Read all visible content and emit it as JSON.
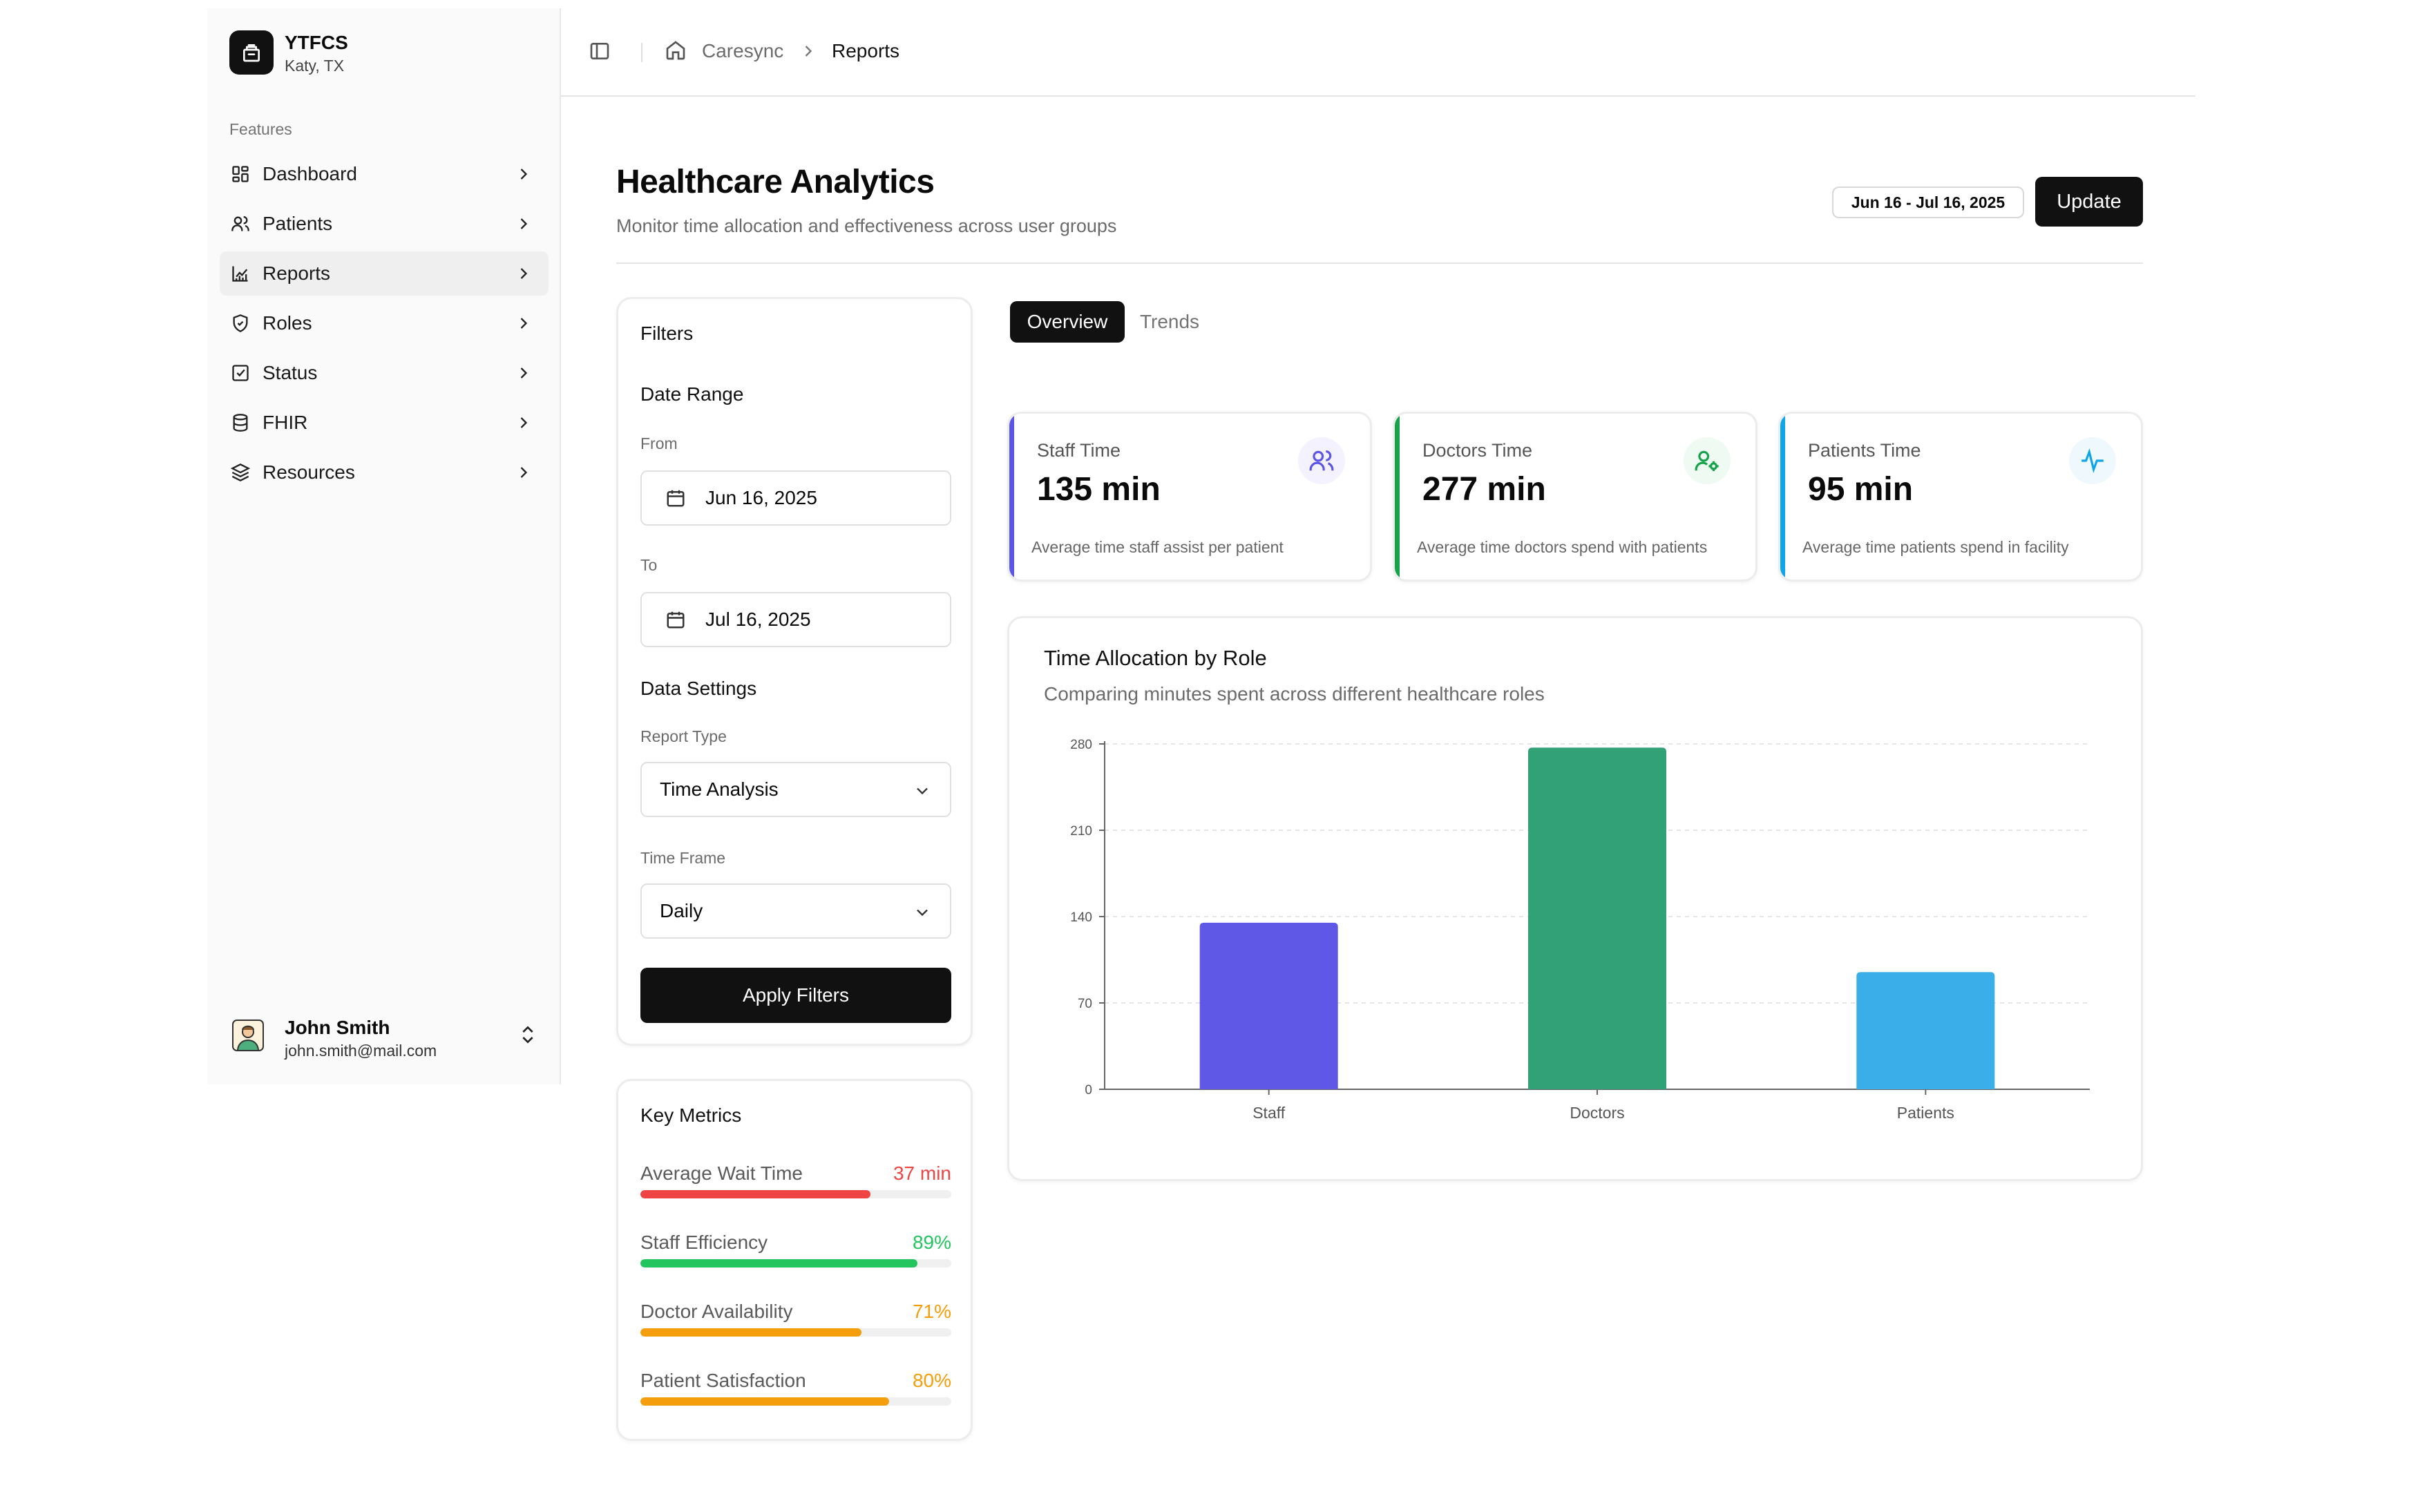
{
  "brand": {
    "name": "YTFCS",
    "location": "Katy, TX"
  },
  "sidebar": {
    "section_label": "Features",
    "items": [
      {
        "label": "Dashboard",
        "icon": "dashboard-icon"
      },
      {
        "label": "Patients",
        "icon": "users-icon"
      },
      {
        "label": "Reports",
        "icon": "chart-icon",
        "active": true
      },
      {
        "label": "Roles",
        "icon": "shield-icon"
      },
      {
        "label": "Status",
        "icon": "checkbox-icon"
      },
      {
        "label": "FHIR",
        "icon": "database-icon"
      },
      {
        "label": "Resources",
        "icon": "layers-icon"
      }
    ],
    "user": {
      "name": "John Smith",
      "email": "john.smith@mail.com"
    }
  },
  "breadcrumb": {
    "root": "Caresync",
    "current": "Reports"
  },
  "page": {
    "title": "Healthcare Analytics",
    "subtitle": "Monitor time allocation and effectiveness across user groups",
    "date_range": "Jun 16 - Jul 16, 2025",
    "update_label": "Update"
  },
  "filters": {
    "title": "Filters",
    "date_range_heading": "Date Range",
    "from_label": "From",
    "from_value": "Jun 16, 2025",
    "to_label": "To",
    "to_value": "Jul 16, 2025",
    "data_settings_heading": "Data Settings",
    "report_type_label": "Report Type",
    "report_type_value": "Time Analysis",
    "time_frame_label": "Time Frame",
    "time_frame_value": "Daily",
    "apply_label": "Apply Filters"
  },
  "key_metrics": {
    "title": "Key Metrics",
    "items": [
      {
        "label": "Average Wait Time",
        "value": "37 min",
        "level": 0.74,
        "color": "#ef4444"
      },
      {
        "label": "Staff Efficiency",
        "value": "89%",
        "level": 0.89,
        "color": "#22c55e"
      },
      {
        "label": "Doctor Availability",
        "value": "71%",
        "level": 0.71,
        "color": "#f59e0b"
      },
      {
        "label": "Patient Satisfaction",
        "value": "80%",
        "level": 0.8,
        "color": "#f59e0b"
      }
    ]
  },
  "tabs": [
    {
      "label": "Overview",
      "active": true
    },
    {
      "label": "Trends"
    }
  ],
  "stats": [
    {
      "label": "Staff Time",
      "value": "135 min",
      "desc": "Average time staff assist per patient",
      "color": "#5b56e8",
      "icon": "users-icon"
    },
    {
      "label": "Doctors Time",
      "value": "277 min",
      "desc": "Average time doctors spend with patients",
      "color": "#16a34a",
      "icon": "user-cog-icon"
    },
    {
      "label": "Patients Time",
      "value": "95 min",
      "desc": "Average time patients spend in facility",
      "color": "#0ea5e9",
      "icon": "activity-icon"
    }
  ],
  "chart": {
    "title": "Time Allocation by Role",
    "subtitle": "Comparing minutes spent across different healthcare roles"
  },
  "chart_data": {
    "type": "bar",
    "categories": [
      "Staff",
      "Doctors",
      "Patients"
    ],
    "values": [
      135,
      277,
      95
    ],
    "colors": [
      "#5f58e6",
      "#33a177",
      "#3aaee8"
    ],
    "yticks": [
      0,
      70,
      140,
      210,
      280
    ],
    "ylim": [
      0,
      280
    ],
    "grid": true
  }
}
